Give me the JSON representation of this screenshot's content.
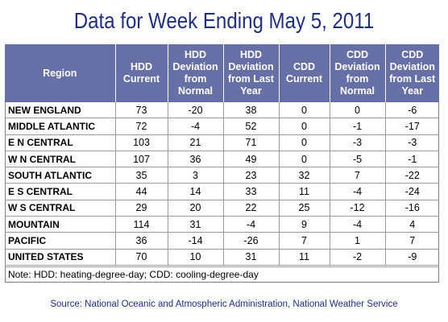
{
  "title": "Data for Week Ending May 5, 2011",
  "headers": [
    "Region",
    "HDD Current",
    "HDD Deviation from Normal",
    "HDD Deviation from Last Year",
    "CDD Current",
    "CDD Deviation from Normal",
    "CDD Deviation from Last Year"
  ],
  "header_lines": [
    [
      "Region"
    ],
    [
      "HDD",
      "Current"
    ],
    [
      "HDD",
      "Deviation",
      "from",
      "Normal"
    ],
    [
      "HDD",
      "Deviation",
      "from Last",
      "Year"
    ],
    [
      "CDD",
      "Current"
    ],
    [
      "CDD",
      "Deviation",
      "from",
      "Normal"
    ],
    [
      "CDD",
      "Deviation",
      "from Last",
      "Year"
    ]
  ],
  "rows": [
    [
      "NEW ENGLAND",
      "73",
      "-20",
      "38",
      "0",
      "0",
      "-6"
    ],
    [
      "MIDDLE ATLANTIC",
      "72",
      "-4",
      "52",
      "0",
      "-1",
      "-17"
    ],
    [
      "E N CENTRAL",
      "103",
      "21",
      "71",
      "0",
      "-3",
      "-3"
    ],
    [
      "W N CENTRAL",
      "107",
      "36",
      "49",
      "0",
      "-5",
      "-1"
    ],
    [
      "SOUTH ATLANTIC",
      "35",
      "3",
      "23",
      "32",
      "7",
      "-22"
    ],
    [
      "E S CENTRAL",
      "44",
      "14",
      "33",
      "11",
      "-4",
      "-24"
    ],
    [
      "W S CENTRAL",
      "29",
      "20",
      "22",
      "25",
      "-12",
      "-16"
    ],
    [
      "MOUNTAIN",
      "114",
      "31",
      "-4",
      "9",
      "-4",
      "4"
    ],
    [
      "PACIFIC",
      "36",
      "-14",
      "-26",
      "7",
      "1",
      "7"
    ],
    [
      "UNITED STATES",
      "70",
      "10",
      "31",
      "11",
      "-2",
      "-9"
    ]
  ],
  "note": "Note: HDD: heating-degree-day; CDD: cooling-degree-day",
  "source": "Source:  National Oceanic and Atmospheric Administration, National Weather Service",
  "colors": {
    "title": "#1f2f86",
    "header_bg": "#6670a6",
    "header_text": "#ffffff",
    "source": "#1f2f86"
  }
}
